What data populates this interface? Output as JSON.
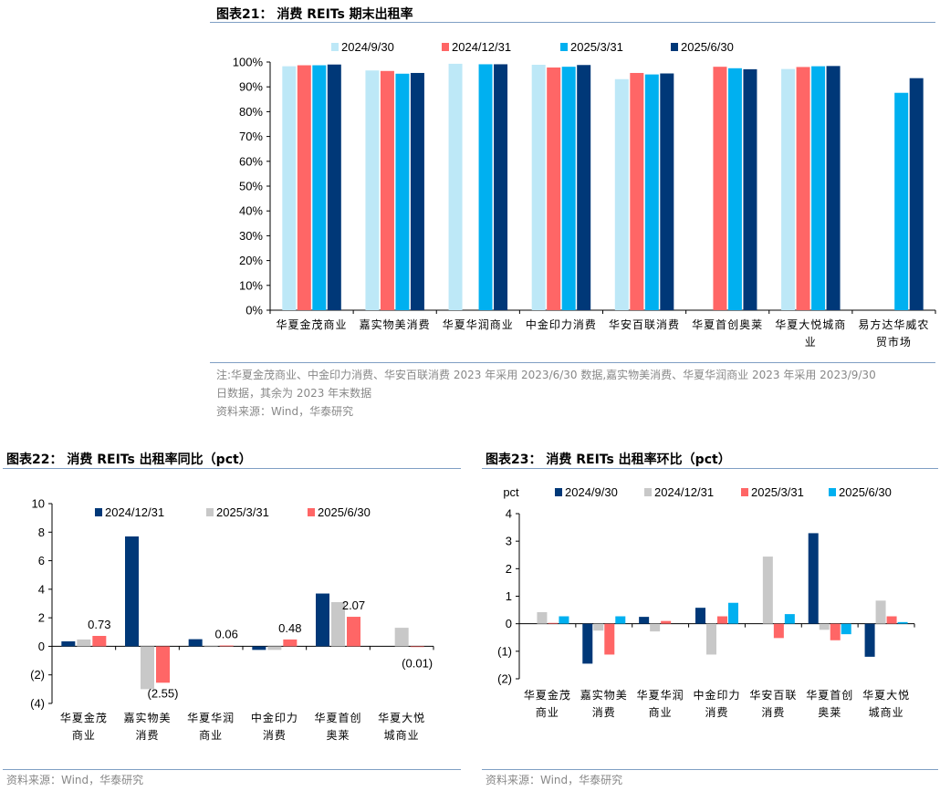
{
  "colors": {
    "c1": "#BDE8F7",
    "c2": "#FF6666",
    "c3": "#00B0F0",
    "c4": "#003878",
    "gray": "#C8C8C8",
    "rule": "#7f9fc4"
  },
  "chart_data": [
    {
      "type": "bar",
      "title": "图表21： 消费 REITs 期末出租率",
      "ylim": [
        0,
        100
      ],
      "yticks": [
        "0%",
        "10%",
        "20%",
        "30%",
        "40%",
        "50%",
        "60%",
        "70%",
        "80%",
        "90%",
        "100%"
      ],
      "legend": "top",
      "categories": [
        [
          "华夏金茂商业"
        ],
        [
          "嘉实物美消费"
        ],
        [
          "华夏华润商业"
        ],
        [
          "中金印力消费"
        ],
        [
          "华安百联消费"
        ],
        [
          "华夏首创奥莱"
        ],
        [
          "华夏大悦城商",
          "业"
        ],
        [
          "易方达华威农",
          "贸市场"
        ]
      ],
      "series": [
        {
          "name": "2024/9/30",
          "color": "#BDE8F7",
          "values": [
            98.3,
            96.6,
            99.3,
            98.9,
            93.1,
            null,
            97.2,
            null
          ]
        },
        {
          "name": "2024/12/31",
          "color": "#FF6666",
          "values": [
            98.7,
            96.4,
            null,
            97.8,
            95.6,
            98.1,
            98.0,
            null
          ]
        },
        {
          "name": "2025/3/31",
          "color": "#00B0F0",
          "values": [
            98.7,
            95.3,
            99.1,
            98.1,
            95.0,
            97.5,
            98.3,
            87.6
          ]
        },
        {
          "name": "2025/6/30",
          "color": "#003878",
          "values": [
            99.0,
            95.6,
            99.1,
            98.8,
            95.4,
            97.1,
            98.4,
            93.5
          ]
        }
      ],
      "notes": [
        "注:华夏金茂商业、中金印力消费、华安百联消费 2023 年采用 2023/6/30 数据,嘉实物美消费、华夏华润商业 2023 年采用 2023/9/30",
        "日数据，其余为 2023 年末数据",
        "资料来源：Wind，华泰研究"
      ]
    },
    {
      "type": "bar",
      "title": "图表22： 消费 REITs 出租率同比（pct）",
      "ylim": [
        -4,
        10
      ],
      "yticks": [
        "(4)",
        "(2)",
        "0",
        "2",
        "4",
        "6",
        "8",
        "10"
      ],
      "legend": "top",
      "categories": [
        [
          "华夏金茂",
          "商业"
        ],
        [
          "嘉实物美",
          "消费"
        ],
        [
          "华夏华润",
          "商业"
        ],
        [
          "中金印力",
          "消费"
        ],
        [
          "华夏首创",
          "奥莱"
        ],
        [
          "华夏大悦",
          "城商业"
        ]
      ],
      "series": [
        {
          "name": "2024/12/31",
          "color": "#003878",
          "values": [
            0.35,
            7.7,
            0.5,
            -0.25,
            3.7,
            null
          ]
        },
        {
          "name": "2025/3/31",
          "color": "#C8C8C8",
          "values": [
            0.48,
            -3.0,
            -0.03,
            -0.25,
            3.1,
            1.3
          ]
        },
        {
          "name": "2025/6/30",
          "color": "#FF6666",
          "values": [
            0.73,
            -2.55,
            0.06,
            0.48,
            2.07,
            -0.01
          ]
        }
      ],
      "data_labels": [
        "0.73",
        "(2.55)",
        "0.06",
        "0.48",
        "2.07",
        "(0.01)"
      ],
      "notes": [
        "资料来源：Wind，华泰研究"
      ]
    },
    {
      "type": "bar",
      "title": "图表23： 消费 REITs 出租率环比（pct）",
      "ylabel": "pct",
      "ylim": [
        -2,
        4
      ],
      "yticks": [
        "(2)",
        "(1)",
        "0",
        "1",
        "2",
        "3",
        "4"
      ],
      "legend": "top",
      "categories": [
        [
          "华夏金茂",
          "商业"
        ],
        [
          "嘉实物美",
          "消费"
        ],
        [
          "华夏华润",
          "商业"
        ],
        [
          "中金印力",
          "消费"
        ],
        [
          "华安百联",
          "消费"
        ],
        [
          "华夏首创",
          "奥莱"
        ],
        [
          "华夏大悦",
          "城商业"
        ]
      ],
      "series": [
        {
          "name": "2024/9/30",
          "color": "#003878",
          "values": [
            null,
            -1.45,
            0.25,
            0.58,
            null,
            3.29,
            -1.2
          ]
        },
        {
          "name": "2024/12/31",
          "color": "#C8C8C8",
          "values": [
            0.42,
            -0.25,
            -0.28,
            -1.12,
            2.44,
            -0.22,
            0.84
          ]
        },
        {
          "name": "2025/3/31",
          "color": "#FF6666",
          "values": [
            0.03,
            -1.12,
            0.1,
            0.27,
            -0.52,
            -0.6,
            0.27
          ]
        },
        {
          "name": "2025/6/30",
          "color": "#00B0F0",
          "values": [
            0.27,
            0.27,
            null,
            0.76,
            0.35,
            -0.38,
            0.06
          ]
        }
      ],
      "notes": [
        "资料来源：Wind，华泰研究"
      ]
    }
  ]
}
